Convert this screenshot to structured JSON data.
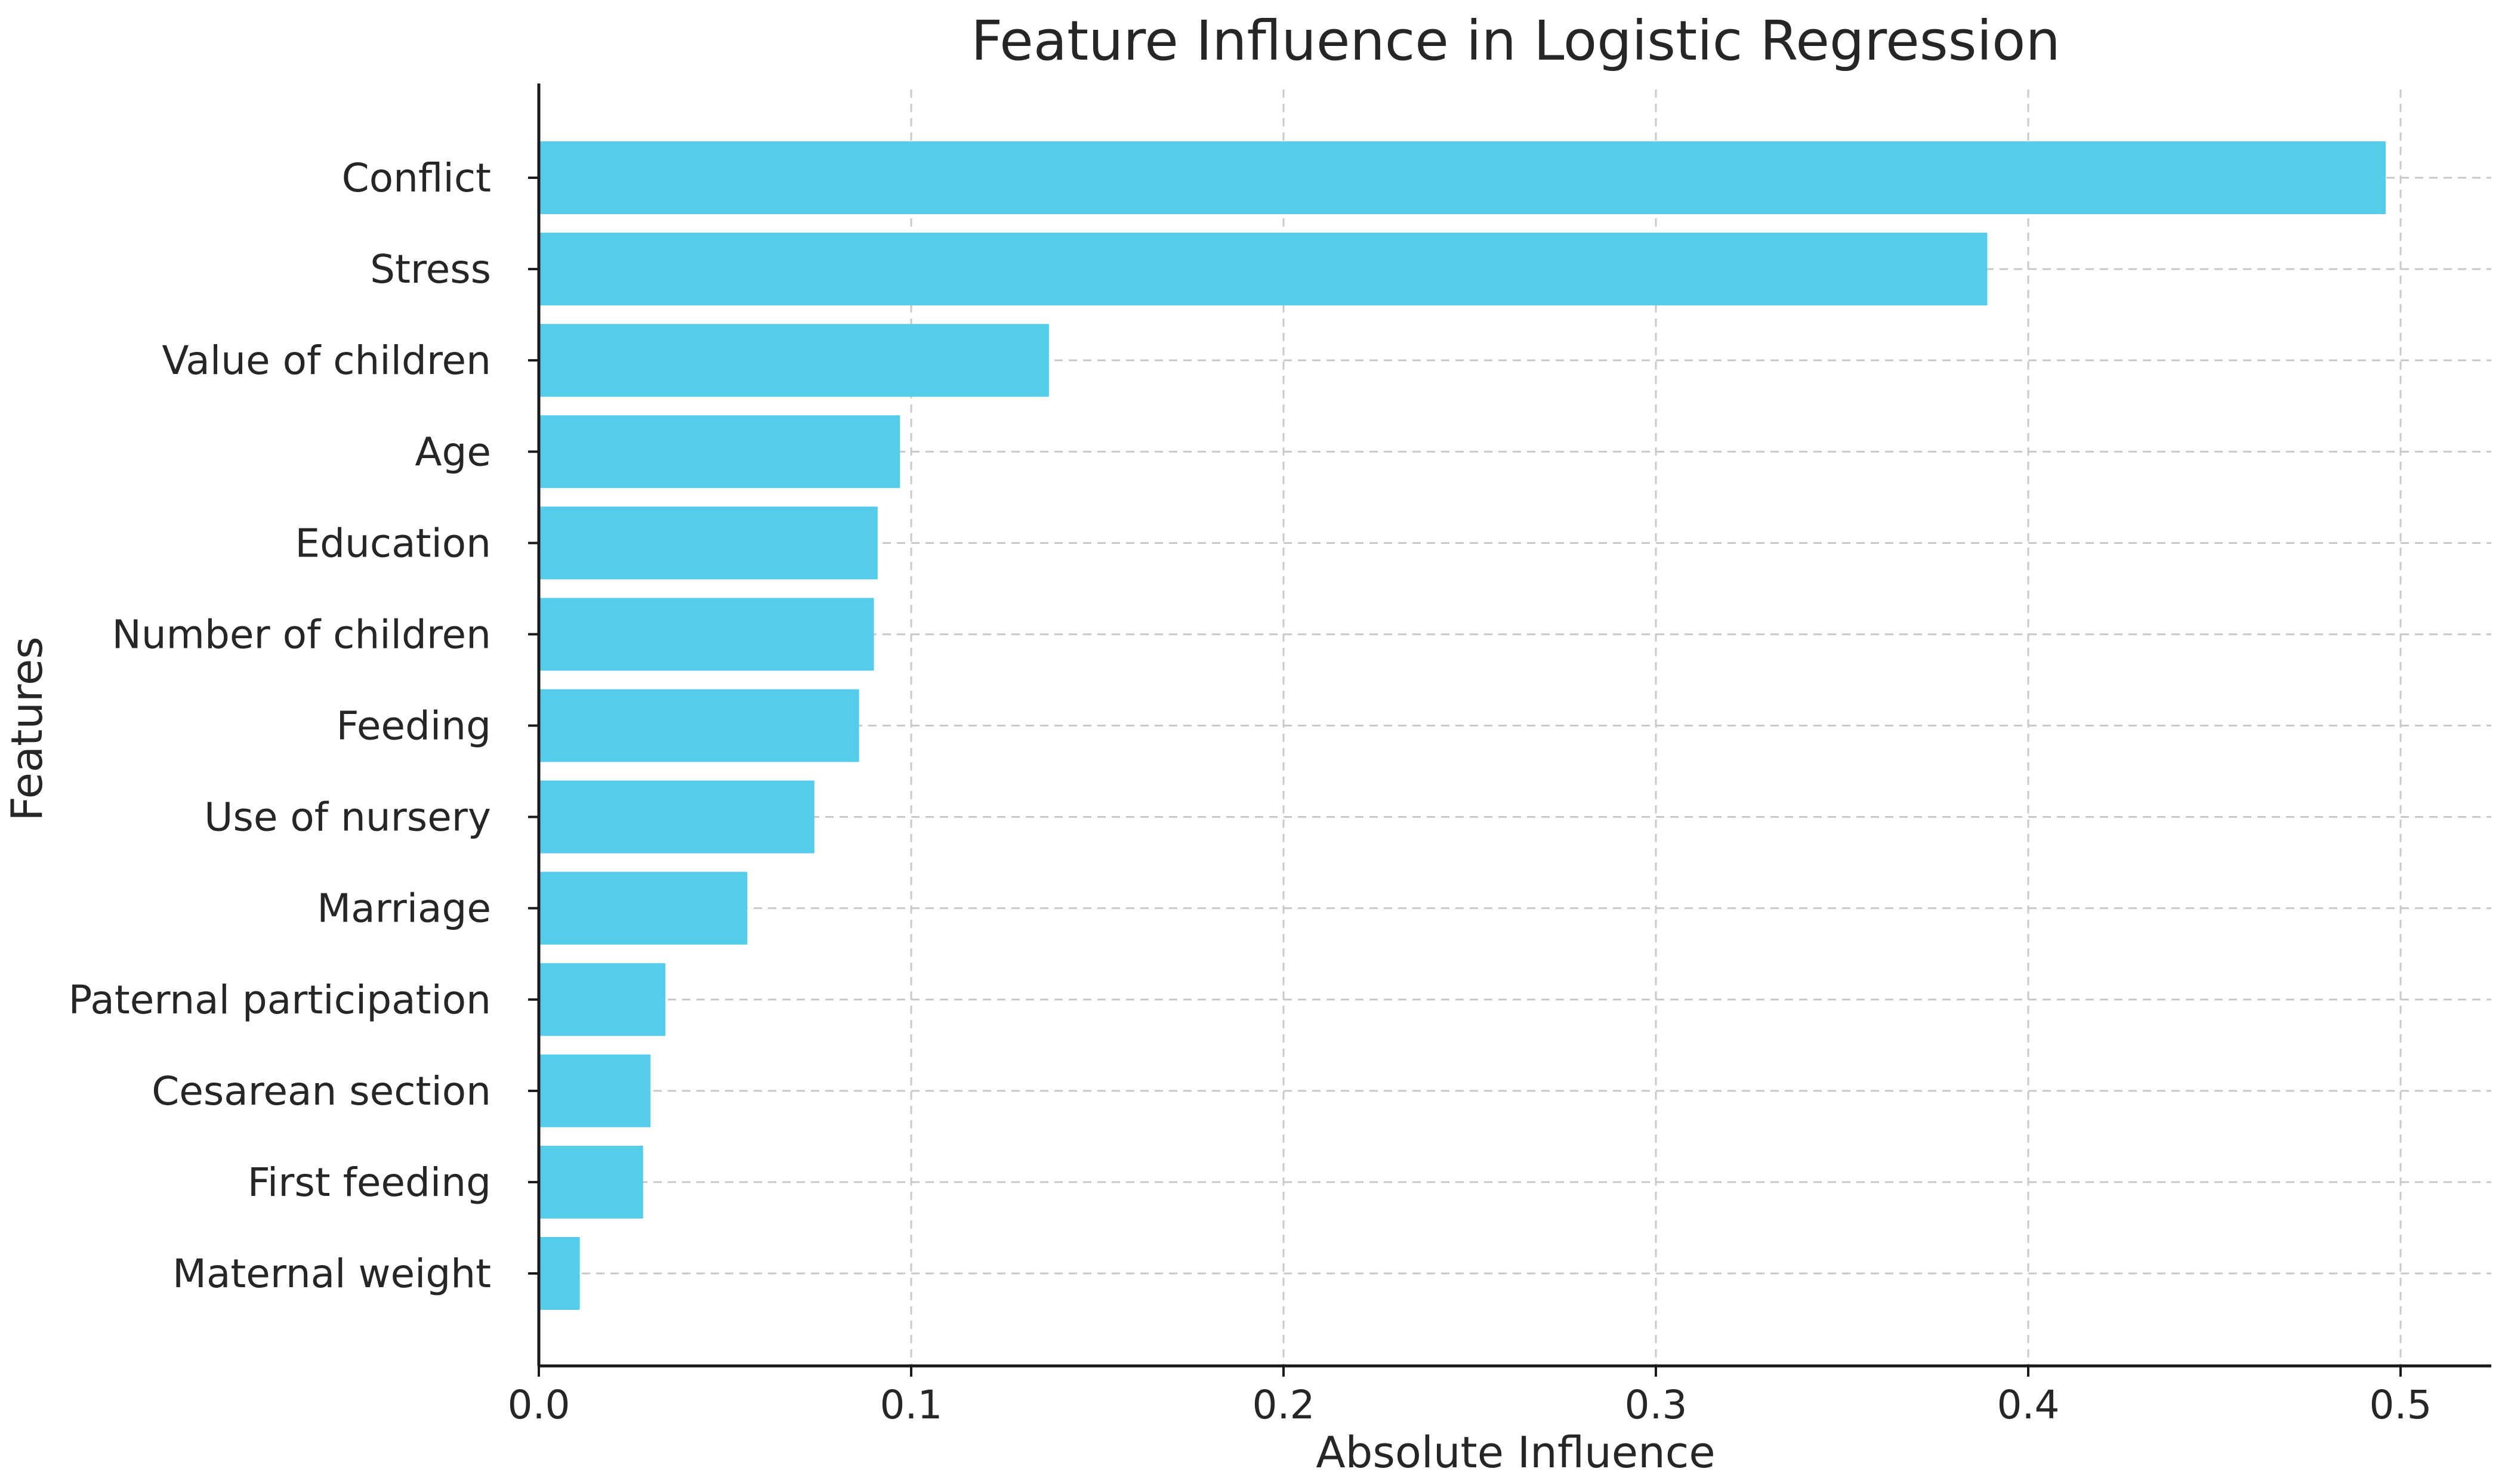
{
  "chart_data": {
    "type": "bar",
    "orientation": "horizontal",
    "title": "Feature Influence in Logistic Regression",
    "xlabel": "Absolute Influence",
    "ylabel": "Features",
    "categories": [
      "Conflict",
      "Stress",
      "Value of children",
      "Age",
      "Education",
      "Number of children",
      "Feeding",
      "Use of nursery",
      "Marriage",
      "Paternal participation",
      "Cesarean section",
      "First feeding",
      "Maternal weight"
    ],
    "values": [
      0.496,
      0.389,
      0.137,
      0.097,
      0.091,
      0.09,
      0.086,
      0.074,
      0.056,
      0.034,
      0.03,
      0.028,
      0.011
    ],
    "xlim": [
      0,
      0.52
    ],
    "xticks": [
      0.0,
      0.1,
      0.2,
      0.3,
      0.4,
      0.5
    ],
    "xtick_labels": [
      "0.0",
      "0.1",
      "0.2",
      "0.3",
      "0.4",
      "0.5"
    ],
    "grid": true,
    "bar_color": "#56CCEB"
  }
}
